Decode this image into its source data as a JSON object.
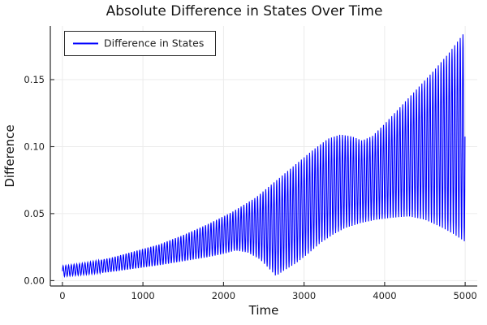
{
  "chart_data": {
    "type": "line",
    "title": "Absolute Difference in States Over Time",
    "xlabel": "Time",
    "ylabel": "Difference",
    "series_name": "Difference in States",
    "series_color": "#0000ff",
    "grid": true,
    "legend_position": "top-left",
    "xlim": [
      -150,
      5150
    ],
    "ylim": [
      -0.004,
      0.19
    ],
    "x_ticks": [
      {
        "v": 0,
        "label": "0"
      },
      {
        "v": 1000,
        "label": "1000"
      },
      {
        "v": 2000,
        "label": "2000"
      },
      {
        "v": 3000,
        "label": "3000"
      },
      {
        "v": 4000,
        "label": "4000"
      },
      {
        "v": 5000,
        "label": "5000"
      }
    ],
    "y_ticks": [
      {
        "v": 0.0,
        "label": "0.00"
      },
      {
        "v": 0.05,
        "label": "0.05"
      },
      {
        "v": 0.1,
        "label": "0.10"
      },
      {
        "v": 0.15,
        "label": "0.15"
      }
    ],
    "x_range": [
      0,
      5000
    ],
    "oscillation_period": 34,
    "upper_envelope": [
      [
        0,
        0.011
      ],
      [
        300,
        0.0135
      ],
      [
        600,
        0.017
      ],
      [
        900,
        0.022
      ],
      [
        1200,
        0.027
      ],
      [
        1500,
        0.034
      ],
      [
        1800,
        0.042
      ],
      [
        2100,
        0.051
      ],
      [
        2400,
        0.062
      ],
      [
        2700,
        0.077
      ],
      [
        2900,
        0.087
      ],
      [
        3100,
        0.097
      ],
      [
        3300,
        0.106
      ],
      [
        3450,
        0.109
      ],
      [
        3600,
        0.1075
      ],
      [
        3720,
        0.1045
      ],
      [
        3850,
        0.108
      ],
      [
        4000,
        0.117
      ],
      [
        4200,
        0.13
      ],
      [
        4400,
        0.143
      ],
      [
        4600,
        0.156
      ],
      [
        4800,
        0.17
      ],
      [
        5000,
        0.186
      ]
    ],
    "lower_envelope": [
      [
        0,
        0.003
      ],
      [
        300,
        0.0045
      ],
      [
        600,
        0.0065
      ],
      [
        900,
        0.009
      ],
      [
        1200,
        0.0115
      ],
      [
        1500,
        0.0145
      ],
      [
        1800,
        0.0175
      ],
      [
        2000,
        0.02
      ],
      [
        2150,
        0.0225
      ],
      [
        2300,
        0.021
      ],
      [
        2450,
        0.016
      ],
      [
        2550,
        0.01
      ],
      [
        2650,
        0.0035
      ],
      [
        2750,
        0.0075
      ],
      [
        2900,
        0.013
      ],
      [
        3050,
        0.02
      ],
      [
        3200,
        0.028
      ],
      [
        3350,
        0.034
      ],
      [
        3500,
        0.039
      ],
      [
        3700,
        0.043
      ],
      [
        3900,
        0.0455
      ],
      [
        4100,
        0.047
      ],
      [
        4300,
        0.048
      ],
      [
        4500,
        0.0455
      ],
      [
        4700,
        0.04
      ],
      [
        4850,
        0.035
      ],
      [
        5000,
        0.029
      ]
    ]
  }
}
